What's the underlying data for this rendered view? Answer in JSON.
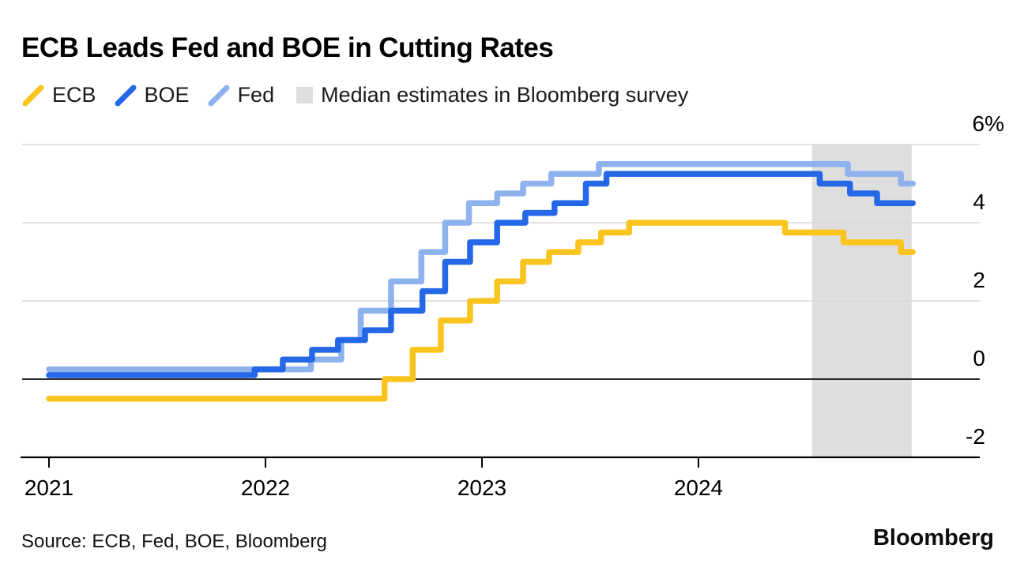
{
  "header": {
    "title": "ECB Leads Fed and BOE in Cutting Rates"
  },
  "legend": {
    "items": [
      {
        "label": "ECB"
      },
      {
        "label": "BOE"
      },
      {
        "label": "Fed"
      },
      {
        "label": "Median estimates in Bloomberg survey"
      }
    ]
  },
  "source": {
    "label": "Source: ECB, Fed, BOE, Bloomberg"
  },
  "branding": {
    "logo_text": "Bloomberg"
  },
  "chart_data": {
    "type": "line",
    "step": true,
    "title": "ECB Leads Fed and BOE in Cutting Rates",
    "unit": "%",
    "grid": "horizontal",
    "legend_position": "top-left",
    "x_axis": {
      "tick_labels": [
        "2021",
        "2022",
        "2023",
        "2024"
      ],
      "tick_values": [
        2021,
        2022,
        2023,
        2024
      ],
      "range": [
        2021.0,
        2025.0
      ]
    },
    "y_axis": {
      "side": "right",
      "tick_labels": [
        "6%",
        "4",
        "2",
        "0",
        "-2"
      ],
      "tick_values": [
        6,
        4,
        2,
        0,
        -2
      ],
      "range": [
        -2,
        6
      ]
    },
    "estimate_band": {
      "label": "Median estimates in Bloomberg survey",
      "from": 2024.525,
      "to": 2024.985,
      "color": "#dedede"
    },
    "series": [
      {
        "name": "ECB",
        "color": "#fac41e",
        "end": 2024.99,
        "points": [
          [
            2021.0,
            -0.5
          ],
          [
            2022.55,
            0.0
          ],
          [
            2022.68,
            0.75
          ],
          [
            2022.81,
            1.5
          ],
          [
            2022.945,
            2.0
          ],
          [
            2023.07,
            2.5
          ],
          [
            2023.19,
            3.0
          ],
          [
            2023.31,
            3.25
          ],
          [
            2023.445,
            3.5
          ],
          [
            2023.55,
            3.75
          ],
          [
            2023.68,
            4.0
          ],
          [
            2024.4,
            3.75
          ],
          [
            2024.67,
            3.5
          ],
          [
            2024.935,
            3.25
          ]
        ]
      },
      {
        "name": "BOE",
        "color": "#2468e8",
        "end": 2024.99,
        "points": [
          [
            2021.0,
            0.1
          ],
          [
            2021.95,
            0.25
          ],
          [
            2022.08,
            0.5
          ],
          [
            2022.215,
            0.75
          ],
          [
            2022.335,
            1.0
          ],
          [
            2022.46,
            1.25
          ],
          [
            2022.58,
            1.75
          ],
          [
            2022.725,
            2.25
          ],
          [
            2022.83,
            3.0
          ],
          [
            2022.945,
            3.5
          ],
          [
            2023.07,
            4.0
          ],
          [
            2023.2,
            4.25
          ],
          [
            2023.335,
            4.5
          ],
          [
            2023.48,
            5.0
          ],
          [
            2023.575,
            5.25
          ],
          [
            2024.56,
            5.0
          ],
          [
            2024.7,
            4.75
          ],
          [
            2024.825,
            4.5
          ]
        ]
      },
      {
        "name": "Fed",
        "color": "#8eb2ee",
        "end": 2024.99,
        "points": [
          [
            2021.0,
            0.25
          ],
          [
            2022.21,
            0.5
          ],
          [
            2022.35,
            1.0
          ],
          [
            2022.44,
            1.75
          ],
          [
            2022.58,
            2.5
          ],
          [
            2022.72,
            3.25
          ],
          [
            2022.83,
            4.0
          ],
          [
            2022.94,
            4.5
          ],
          [
            2023.07,
            4.75
          ],
          [
            2023.19,
            5.0
          ],
          [
            2023.32,
            5.25
          ],
          [
            2023.54,
            5.5
          ],
          [
            2024.69,
            5.25
          ],
          [
            2024.935,
            5.0
          ]
        ]
      }
    ]
  }
}
